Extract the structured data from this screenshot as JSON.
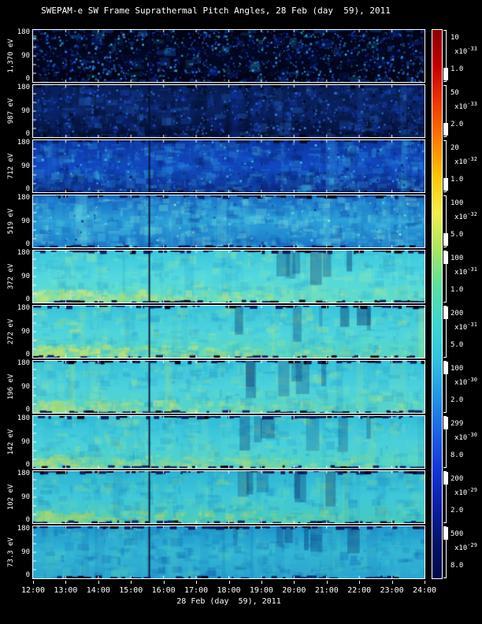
{
  "title": "SWEPAM-e SW Frame Suprathermal Pitch Angles, 28 Feb (day  59), 2011",
  "x_axis": {
    "ticks": [
      "12:00",
      "13:00",
      "14:00",
      "15:00",
      "16:00",
      "17:00",
      "18:00",
      "19:00",
      "20:00",
      "21:00",
      "22:00",
      "23:00",
      "24:00"
    ],
    "label": "28 Feb (day  59), 2011"
  },
  "y_axis": {
    "ticks": [
      "180",
      "90",
      "0"
    ],
    "units": "deg"
  },
  "colorbar": {
    "stops": [
      "#8b0000",
      "#c40000",
      "#f03800",
      "#ff7a00",
      "#ffc400",
      "#f4ee4c",
      "#a6e85c",
      "#5adfa0",
      "#3cd8d0",
      "#2fc3e2",
      "#2196e8",
      "#1a64e8",
      "#1337d8",
      "#0b1fa8",
      "#051268",
      "#03084a"
    ]
  },
  "chart_data": {
    "type": "heatmap",
    "title": "SWEPAM-e SW Frame Suprathermal Pitch Angles, 28 Feb (day  59), 2011",
    "xlabel": "28 Feb (day  59), 2011",
    "x_ticks": [
      "12:00",
      "13:00",
      "14:00",
      "15:00",
      "16:00",
      "17:00",
      "18:00",
      "19:00",
      "20:00",
      "21:00",
      "22:00",
      "23:00",
      "24:00"
    ],
    "x_range_hours": [
      12,
      24
    ],
    "y_range_deg": [
      0,
      180
    ],
    "y_ticks": [
      180,
      90,
      0
    ],
    "data_gap_fraction": 0.295,
    "mult_prefix": "x10",
    "panels": [
      {
        "energy": "1,370 eV",
        "scale": {
          "max": "10",
          "exp": "-33",
          "min": "1.0"
        },
        "marker": "lower",
        "render": {
          "bg": [
            "#010314",
            "#020825",
            "#010314"
          ],
          "palette": [
            "#0a2aa0",
            "#1240d0",
            "#2470e0",
            "#30b0e0",
            "#000610"
          ],
          "dots": 1700,
          "blobs": 160,
          "streaks": 0,
          "band": false,
          "dark_cols": false
        }
      },
      {
        "energy": "987 eV",
        "scale": {
          "max": "50",
          "exp": "-33",
          "min": "2.0"
        },
        "marker": "lower",
        "render": {
          "bg": [
            "#081d52",
            "#0a2260",
            "#040e30"
          ],
          "palette": [
            "#1030a0",
            "#1d4fd0",
            "#2e7ce0",
            "#020818"
          ],
          "dots": 900,
          "blobs": 500,
          "streaks": 14,
          "band": false,
          "dark_cols": false
        }
      },
      {
        "energy": "712 eV",
        "scale": {
          "max": "20",
          "exp": "-32",
          "min": "1.0"
        },
        "marker": "lower",
        "render": {
          "bg": [
            "#0d37a2",
            "#1148c2",
            "#0a2a80"
          ],
          "palette": [
            "#1a5fd8",
            "#2e9ae0",
            "#45c4e8",
            "#071f60"
          ],
          "dots": 350,
          "blobs": 650,
          "streaks": 22,
          "band": false,
          "dark_cols": false
        }
      },
      {
        "energy": "519 eV",
        "scale": {
          "max": "100",
          "exp": "-32",
          "min": "5.0"
        },
        "marker": "lower",
        "render": {
          "bg": [
            "#1668c4",
            "#2b9ed8",
            "#1a77c8"
          ],
          "palette": [
            "#34b4e0",
            "#58d8e8",
            "#8ae8d8",
            "#0c3f9e"
          ],
          "dots": 120,
          "blobs": 620,
          "streaks": 26,
          "band": false,
          "dark_cols": false
        }
      },
      {
        "energy": "372 eV",
        "scale": {
          "max": "100",
          "exp": "-31",
          "min": "1.0"
        },
        "marker": "upper",
        "render": {
          "bg": [
            "#3cc8dc",
            "#52d8e0",
            "#62dcc4"
          ],
          "palette": [
            "#2fb4d4",
            "#7ce8c0",
            "#a8e89a",
            "#28a0cc"
          ],
          "dots": 0,
          "blobs": 420,
          "streaks": 18,
          "band": true,
          "band_colors": [
            "#c4e87a",
            "#aade6e",
            "#d4ec8a"
          ],
          "dark_cols": true
        }
      },
      {
        "energy": "272 eV",
        "scale": {
          "max": "200",
          "exp": "-31",
          "min": "5.0"
        },
        "marker": "upper",
        "render": {
          "bg": [
            "#38c4da",
            "#4ed4de",
            "#58d6c0"
          ],
          "palette": [
            "#2fb0d2",
            "#84e8b4",
            "#b8e87e",
            "#2898c8"
          ],
          "dots": 0,
          "blobs": 430,
          "streaks": 20,
          "band": true,
          "band_colors": [
            "#d8e860",
            "#e8e458",
            "#b8e070"
          ],
          "dark_cols": true
        }
      },
      {
        "energy": "196 eV",
        "scale": {
          "max": "100",
          "exp": "-30",
          "min": "2.0"
        },
        "marker": "upper",
        "render": {
          "bg": [
            "#36c2da",
            "#4cd2de",
            "#56d4c4"
          ],
          "palette": [
            "#2cacd0",
            "#7ce4bc",
            "#a8e48c",
            "#2494c6"
          ],
          "dots": 0,
          "blobs": 420,
          "streaks": 18,
          "band": true,
          "band_colors": [
            "#c0e47c",
            "#a8dc72"
          ],
          "dark_cols": true
        }
      },
      {
        "energy": "142 eV",
        "scale": {
          "max": "299",
          "exp": "-30",
          "min": "8.0"
        },
        "marker": "upper",
        "render": {
          "bg": [
            "#32bed8",
            "#48d0dc",
            "#52d2c4"
          ],
          "palette": [
            "#28a8ce",
            "#74e0ba",
            "#9edc86",
            "#2090c4"
          ],
          "dots": 0,
          "blobs": 420,
          "streaks": 18,
          "band": true,
          "band_colors": [
            "#bce078",
            "#a4d870"
          ],
          "dark_cols": true
        }
      },
      {
        "energy": "102 eV",
        "scale": {
          "max": "200",
          "exp": "-29",
          "min": "2.0"
        },
        "marker": "upper",
        "render": {
          "bg": [
            "#2cb4d4",
            "#40c8da",
            "#48cabe"
          ],
          "palette": [
            "#209cc8",
            "#68dab4",
            "#96d882",
            "#1c88c0"
          ],
          "dots": 0,
          "blobs": 430,
          "streaks": 20,
          "band": true,
          "band_colors": [
            "#b4dc74",
            "#9cd46c"
          ],
          "dark_cols": true
        }
      },
      {
        "energy": "73.3 eV",
        "scale": {
          "max": "500",
          "exp": "-29",
          "min": "8.0"
        },
        "marker": "upper",
        "render": {
          "bg": [
            "#1e98cc",
            "#32b6d6",
            "#2aa4ce"
          ],
          "palette": [
            "#1680be",
            "#54ccb8",
            "#40c0dc",
            "#0f5cae"
          ],
          "dots": 0,
          "blobs": 460,
          "streaks": 24,
          "band": false,
          "dark_cols": true
        }
      }
    ]
  }
}
